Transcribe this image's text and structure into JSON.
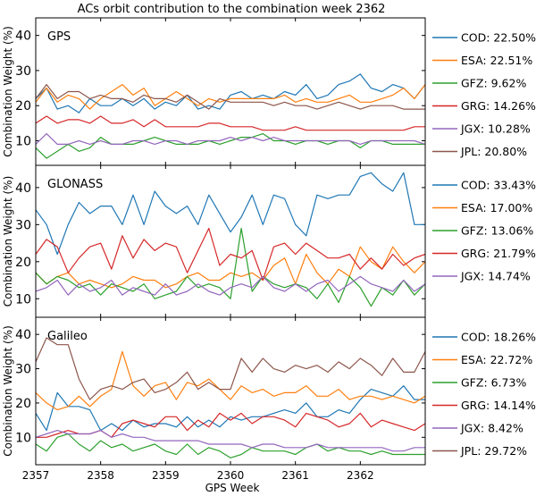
{
  "chart_data": {
    "title": "ACs orbit contribution to the combination week 2362",
    "xlabel": "GPS Week",
    "x_ticks": [
      "2357",
      "2358",
      "2359",
      "2360",
      "2361",
      "2362"
    ],
    "colors": {
      "COD": "#1f77b4",
      "ESA": "#ff7f0e",
      "GFZ": "#2ca02c",
      "GRG": "#d62728",
      "JGX": "#9467bd",
      "JPL": "#8c564b"
    },
    "panels": [
      {
        "type": "line",
        "name": "GPS",
        "ylabel": "Combination Weight (%)",
        "ylim": [
          3,
          45
        ],
        "y_ticks": [
          "10",
          "20",
          "30",
          "40"
        ],
        "xlim": [
          2357,
          2363
        ],
        "series": [
          {
            "name": "COD",
            "legend": "COD: 22.50%",
            "values": [
              22,
              25,
              19,
              20,
              18,
              22,
              20,
              20,
              22,
              20,
              22,
              19,
              21,
              20,
              23,
              19,
              20,
              19,
              23,
              24,
              22,
              23,
              22,
              24,
              23,
              26,
              22,
              23,
              26,
              27,
              29,
              25,
              24,
              26,
              25,
              22,
              26
            ]
          },
          {
            "name": "ESA",
            "legend": "ESA: 22.51%",
            "values": [
              21,
              25,
              21,
              23,
              22,
              19,
              22,
              24,
              26,
              23,
              25,
              20,
              22,
              24,
              22,
              20,
              22,
              21,
              22,
              22,
              22,
              22,
              22,
              23,
              21,
              22,
              21,
              21,
              22,
              23,
              21,
              21,
              22,
              23,
              25,
              22,
              26
            ]
          },
          {
            "name": "GFZ",
            "legend": "GFZ:  9.62%",
            "values": [
              8,
              5,
              7,
              9,
              7,
              8,
              11,
              9,
              9,
              9,
              10,
              11,
              10,
              9,
              9,
              9,
              10,
              9,
              10,
              11,
              11,
              12,
              10,
              10,
              9,
              10,
              10,
              9,
              10,
              10,
              8,
              10,
              10,
              9,
              9,
              9,
              9
            ]
          },
          {
            "name": "GRG",
            "legend": "GRG: 14.26%",
            "values": [
              15,
              17,
              15,
              16,
              16,
              15,
              17,
              15,
              15,
              16,
              14,
              16,
              14,
              14,
              14,
              14,
              15,
              15,
              14,
              14,
              14,
              13,
              13,
              13,
              14,
              13,
              13,
              13,
              13,
              13,
              13,
              13,
              13,
              13,
              13,
              14,
              14
            ]
          },
          {
            "name": "JGX",
            "legend": "JGX: 10.28%",
            "values": [
              9,
              12,
              9,
              9,
              10,
              9,
              10,
              9,
              9,
              10,
              10,
              9,
              10,
              10,
              9,
              10,
              10,
              10,
              11,
              10,
              11,
              10,
              11,
              10,
              10,
              10,
              10,
              10,
              10,
              10,
              9,
              10,
              10,
              10,
              10,
              10,
              9
            ]
          },
          {
            "name": "JPL",
            "legend": "JPL: 20.80%",
            "values": [
              22,
              26,
              22,
              24,
              24,
              22,
              23,
              22,
              22,
              21,
              23,
              22,
              22,
              21,
              23,
              21,
              19,
              22,
              21,
              21,
              21,
              21,
              20,
              21,
              20,
              20,
              19,
              20,
              21,
              20,
              19,
              20,
              20,
              20,
              19,
              19,
              19
            ]
          }
        ]
      },
      {
        "type": "line",
        "name": "GLONASS",
        "ylabel": "Combination Weight (%)",
        "ylim": [
          5,
          46
        ],
        "y_ticks": [
          "10",
          "20",
          "30",
          "40"
        ],
        "xlim": [
          2357,
          2363
        ],
        "series": [
          {
            "name": "COD",
            "legend": "COD: 33.43%",
            "values": [
              34,
              30,
              22,
              30,
              36,
              33,
              35,
              35,
              30,
              38,
              30,
              39,
              35,
              33,
              35,
              30,
              38,
              33,
              28,
              32,
              38,
              30,
              38,
              37,
              30,
              27,
              38,
              37,
              38,
              38,
              43,
              44,
              41,
              39,
              44,
              30,
              30
            ]
          },
          {
            "name": "ESA",
            "legend": "ESA: 17.00%",
            "values": [
              17,
              14,
              16,
              17,
              14,
              15,
              14,
              13,
              14,
              16,
              15,
              15,
              13,
              14,
              16,
              17,
              15,
              15,
              17,
              16,
              17,
              15,
              19,
              21,
              14,
              22,
              17,
              14,
              18,
              16,
              24,
              20,
              18,
              24,
              20,
              17,
              20
            ]
          },
          {
            "name": "GFZ",
            "legend": "GFZ: 13.06%",
            "values": [
              17,
              14,
              16,
              15,
              13,
              14,
              11,
              14,
              13,
              12,
              14,
              10,
              11,
              12,
              16,
              13,
              14,
              13,
              10,
              29,
              12,
              16,
              14,
              13,
              14,
              13,
              10,
              14,
              9,
              16,
              13,
              8,
              13,
              11,
              15,
              11,
              14
            ]
          },
          {
            "name": "GRG",
            "legend": "GRG: 21.79%",
            "values": [
              22,
              26,
              24,
              17,
              21,
              24,
              25,
              18,
              27,
              21,
              26,
              23,
              25,
              24,
              17,
              23,
              29,
              19,
              22,
              21,
              23,
              15,
              24,
              25,
              22,
              25,
              23,
              21,
              21,
              22,
              18,
              21,
              18,
              22,
              19,
              21,
              22
            ]
          },
          {
            "name": "JGX",
            "legend": "JGX: 14.74%",
            "values": [
              12,
              13,
              15,
              11,
              14,
              12,
              13,
              15,
              11,
              13,
              12,
              11,
              14,
              11,
              12,
              14,
              12,
              11,
              13,
              14,
              13,
              16,
              13,
              12,
              14,
              12,
              14,
              15,
              12,
              14,
              16,
              14,
              13,
              12,
              15,
              12,
              14
            ]
          }
        ]
      },
      {
        "type": "line",
        "name": "Galileo",
        "ylabel": "Combination Weight (%)",
        "ylim": [
          2,
          45
        ],
        "y_ticks": [
          "10",
          "20",
          "30",
          "40"
        ],
        "xlim": [
          2357,
          2363
        ],
        "series": [
          {
            "name": "COD",
            "legend": "COD: 18.26%",
            "values": [
              17,
              12,
              23,
              19,
              19,
              18,
              12,
              14,
              12,
              15,
              13,
              14,
              14,
              13,
              16,
              13,
              15,
              13,
              16,
              15,
              16,
              16,
              17,
              18,
              17,
              20,
              16,
              16,
              18,
              17,
              21,
              24,
              23,
              22,
              25,
              21,
              21
            ]
          },
          {
            "name": "ESA",
            "legend": "ESA: 22.72%",
            "values": [
              23,
              20,
              18,
              19,
              22,
              19,
              22,
              24,
              35,
              25,
              22,
              25,
              26,
              21,
              26,
              25,
              27,
              24,
              21,
              25,
              23,
              24,
              22,
              23,
              23,
              25,
              22,
              22,
              24,
              21,
              22,
              22,
              21,
              22,
              21,
              20,
              22
            ]
          },
          {
            "name": "GFZ",
            "legend": "GFZ:  6.73%",
            "values": [
              8,
              6,
              10,
              11,
              8,
              6,
              9,
              7,
              8,
              6,
              7,
              8,
              6,
              5,
              8,
              5,
              7,
              6,
              4,
              5,
              7,
              6,
              6,
              6,
              5,
              7,
              8,
              6,
              7,
              6,
              6,
              5,
              6,
              5,
              5,
              5,
              5
            ]
          },
          {
            "name": "GRG",
            "legend": "GRG: 14.14%",
            "values": [
              10,
              10,
              11,
              12,
              11,
              11,
              12,
              10,
              14,
              15,
              14,
              13,
              16,
              16,
              12,
              15,
              13,
              17,
              15,
              17,
              14,
              16,
              16,
              15,
              13,
              17,
              16,
              15,
              13,
              14,
              17,
              13,
              15,
              14,
              13,
              12,
              14
            ]
          },
          {
            "name": "JGX",
            "legend": "JGX:  8.42%",
            "values": [
              10,
              11,
              12,
              11,
              11,
              11,
              12,
              10,
              11,
              10,
              10,
              9,
              9,
              9,
              9,
              9,
              8,
              8,
              8,
              8,
              7,
              8,
              8,
              7,
              7,
              7,
              8,
              7,
              7,
              7,
              7,
              7,
              7,
              6,
              6,
              7,
              7
            ]
          },
          {
            "name": "JPL",
            "legend": "JPL: 29.72%",
            "values": [
              32,
              39,
              37,
              37,
              27,
              21,
              24,
              25,
              24,
              26,
              27,
              23,
              24,
              26,
              29,
              24,
              26,
              24,
              24,
              33,
              29,
              33,
              30,
              29,
              31,
              30,
              31,
              29,
              32,
              30,
              33,
              31,
              28,
              33,
              29,
              29,
              35
            ]
          }
        ]
      }
    ]
  }
}
